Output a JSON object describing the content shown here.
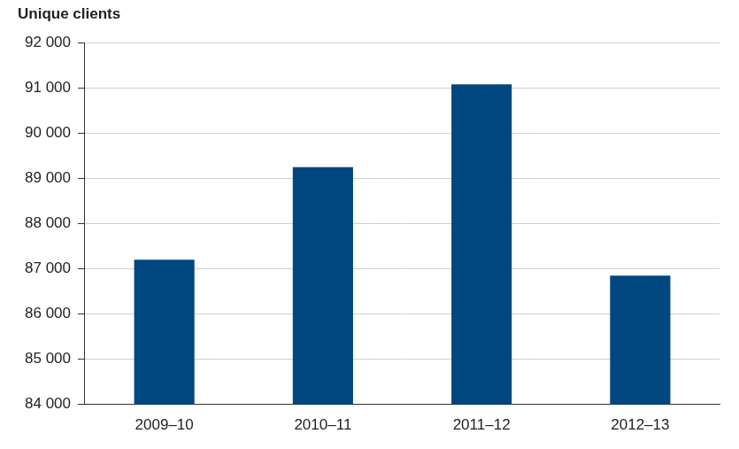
{
  "chart_data": {
    "type": "bar",
    "y_label": "Unique clients",
    "categories": [
      "2009–10",
      "2010–11",
      "2011–12",
      "2012–13"
    ],
    "values": [
      87200,
      89250,
      91080,
      86850
    ],
    "color": "#00467f",
    "ylim": [
      84000,
      92000
    ],
    "yticks": [
      {
        "value": 84000,
        "label": "84 000"
      },
      {
        "value": 85000,
        "label": "85 000"
      },
      {
        "value": 86000,
        "label": "86 000"
      },
      {
        "value": 87000,
        "label": "87 000"
      },
      {
        "value": 88000,
        "label": "88 000"
      },
      {
        "value": 89000,
        "label": "89 000"
      },
      {
        "value": 90000,
        "label": "90 000"
      },
      {
        "value": 91000,
        "label": "91 000"
      },
      {
        "value": 92000,
        "label": "92 000"
      }
    ],
    "grid": true
  }
}
